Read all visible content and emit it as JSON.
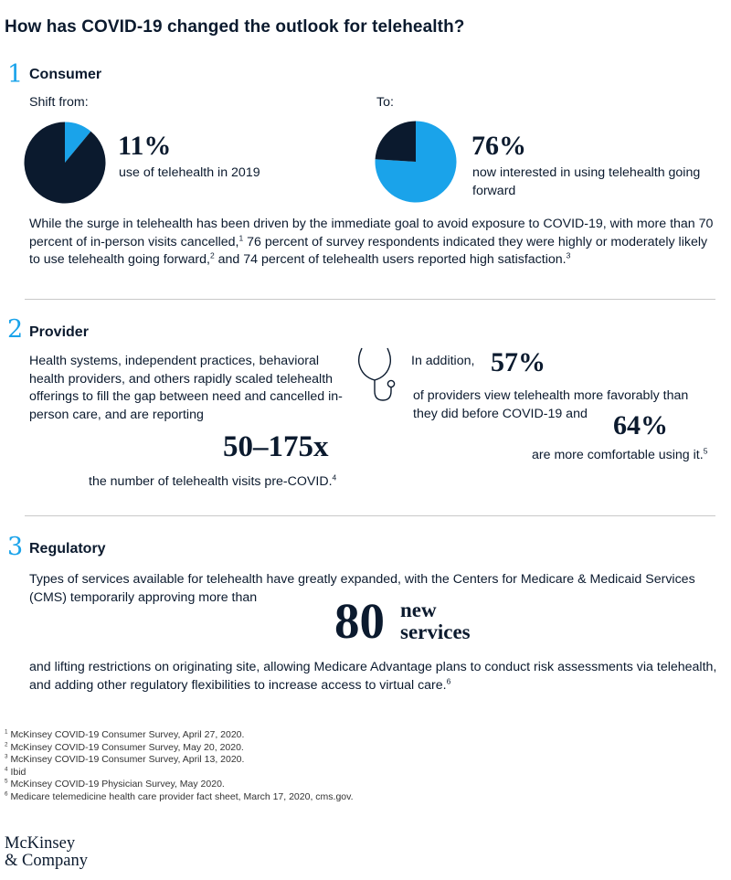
{
  "title": "How has COVID-19 changed the outlook for telehealth?",
  "colors": {
    "accent": "#1aa3ea",
    "dark": "#0b1a2e",
    "rule": "#c9c9c9"
  },
  "consumer": {
    "number": "1",
    "heading": "Consumer",
    "shift_from_label": "Shift from:",
    "to_label": "To:",
    "stat1_value": "11%",
    "stat1_desc": "use of telehealth in 2019",
    "stat2_value": "76%",
    "stat2_desc": "now interested in using telehealth going forward",
    "para_part1": "While the surge in telehealth has been driven by the immediate goal to avoid exposure to COVID-19, with more than 70 percent of in-person visits cancelled,",
    "para_sup1": "1",
    "para_part2": " 76 percent of survey respondents indicated they were highly or moderately likely to use telehealth going forward,",
    "para_sup2": "2",
    "para_part3": " and 74 percent of telehealth users reported high satisfaction.",
    "para_sup3": "3"
  },
  "provider": {
    "number": "2",
    "heading": "Provider",
    "para": "Health systems, independent practices, behavioral health providers, and others rapidly scaled telehealth offerings to fill the gap between need and cancelled in-person care, and are reporting",
    "big_value": "50–175x",
    "big_desc": "the number of telehealth visits pre-COVID.",
    "big_sup": "4",
    "icon": "stethoscope-icon",
    "in_addition": "In addition,",
    "stat1_value": "57%",
    "stat1_desc": "of providers view telehealth more favorably than they did before COVID-19 and",
    "stat2_value": "64%",
    "stat2_desc": "are more comfortable using it.",
    "stat2_sup": "5"
  },
  "regulatory": {
    "number": "3",
    "heading": "Regulatory",
    "para1": "Types of services available for telehealth have greatly expanded, with the Centers for Medicare & Medicaid Services (CMS) temporarily approving more than",
    "big_value": "80",
    "big_word1": "new",
    "big_word2": "services",
    "para2": "and lifting restrictions on originating site, allowing Medicare Advantage plans to conduct risk assessments via telehealth, and adding other regulatory flexibilities to increase access to virtual care.",
    "para2_sup": "6"
  },
  "footnotes": [
    {
      "mark": "1",
      "text": "McKinsey COVID-19 Consumer Survey, April 27, 2020."
    },
    {
      "mark": "2",
      "text": "McKinsey COVID-19 Consumer Survey, May 20, 2020."
    },
    {
      "mark": "3",
      "text": "McKinsey COVID-19 Consumer Survey, April 13, 2020."
    },
    {
      "mark": "4",
      "text": "Ibid"
    },
    {
      "mark": "5",
      "text": "McKinsey COVID-19 Physician Survey, May 2020."
    },
    {
      "mark": "6",
      "text": "Medicare telemedicine health care provider fact sheet, March 17, 2020, cms.gov."
    }
  ],
  "logo": {
    "line1": "McKinsey",
    "line2": "& Company"
  },
  "chart_data": [
    {
      "type": "pie",
      "title": "",
      "labels": [
        "use of telehealth in 2019",
        "other"
      ],
      "values": [
        11,
        89
      ],
      "colors": [
        "#1aa3ea",
        "#0b1a2e"
      ]
    },
    {
      "type": "pie",
      "title": "",
      "labels": [
        "now interested in using telehealth going forward",
        "other"
      ],
      "values": [
        76,
        24
      ],
      "colors": [
        "#1aa3ea",
        "#0b1a2e"
      ]
    }
  ]
}
